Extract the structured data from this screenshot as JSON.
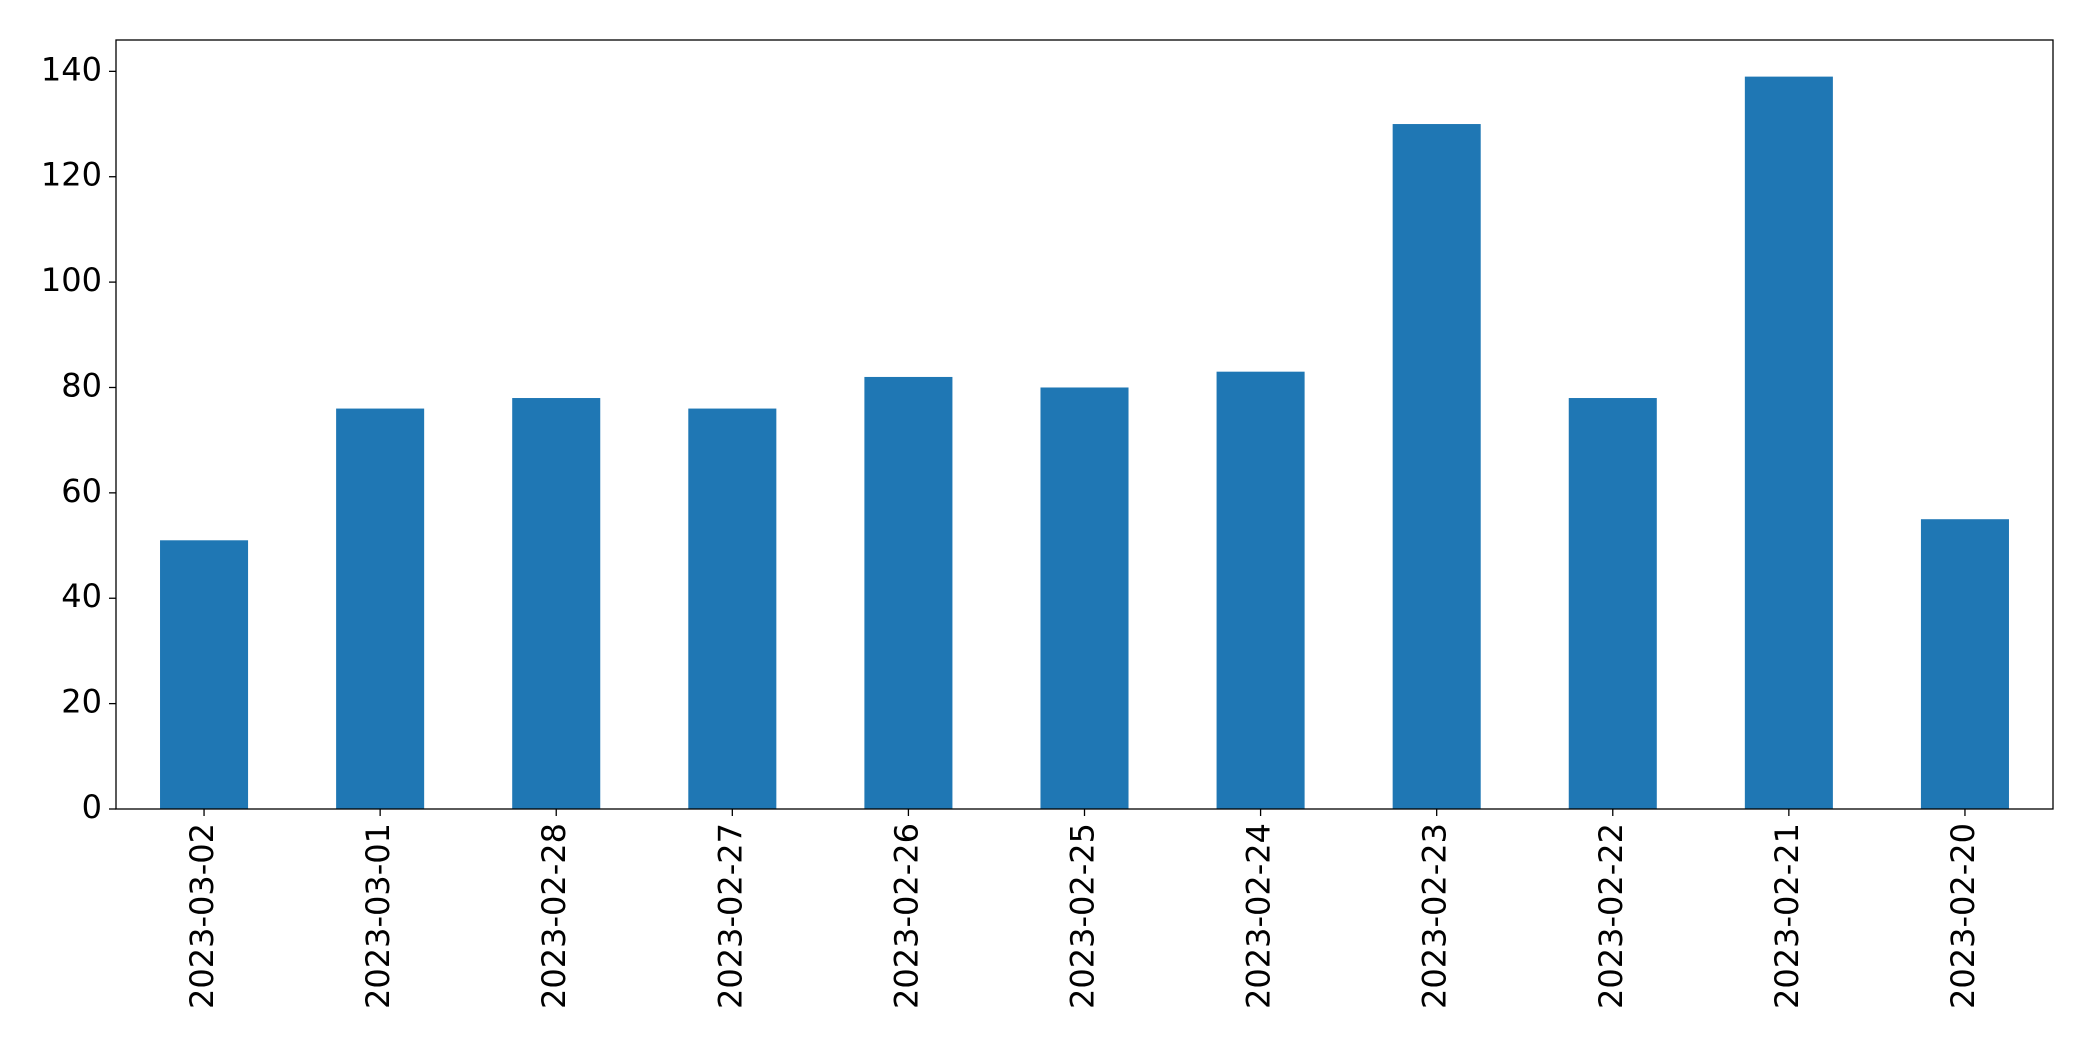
{
  "chart_data": {
    "type": "bar",
    "categories": [
      "2023-03-02",
      "2023-03-01",
      "2023-02-28",
      "2023-02-27",
      "2023-02-26",
      "2023-02-25",
      "2023-02-24",
      "2023-02-23",
      "2023-02-22",
      "2023-02-21",
      "2023-02-20"
    ],
    "values": [
      51,
      76,
      78,
      76,
      82,
      80,
      83,
      130,
      78,
      139,
      55
    ],
    "color": "#1f77b4",
    "ylim": [
      0,
      145.95
    ],
    "yticks": [
      0,
      20,
      40,
      60,
      80,
      100,
      120,
      140
    ],
    "grid": false
  }
}
